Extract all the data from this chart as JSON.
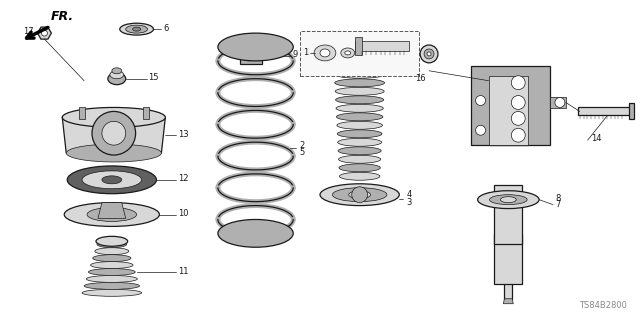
{
  "background_color": "#ffffff",
  "dark": "#1a1a1a",
  "gray_fill": "#d8d8d8",
  "gray_mid": "#b0b0b0",
  "gray_dark": "#888888",
  "watermark": "TS84B2800",
  "fr_label": "FR.",
  "figsize": [
    6.4,
    3.19
  ],
  "dpi": 100,
  "lw_main": 0.9,
  "lw_thin": 0.5,
  "label_fs": 6.0
}
